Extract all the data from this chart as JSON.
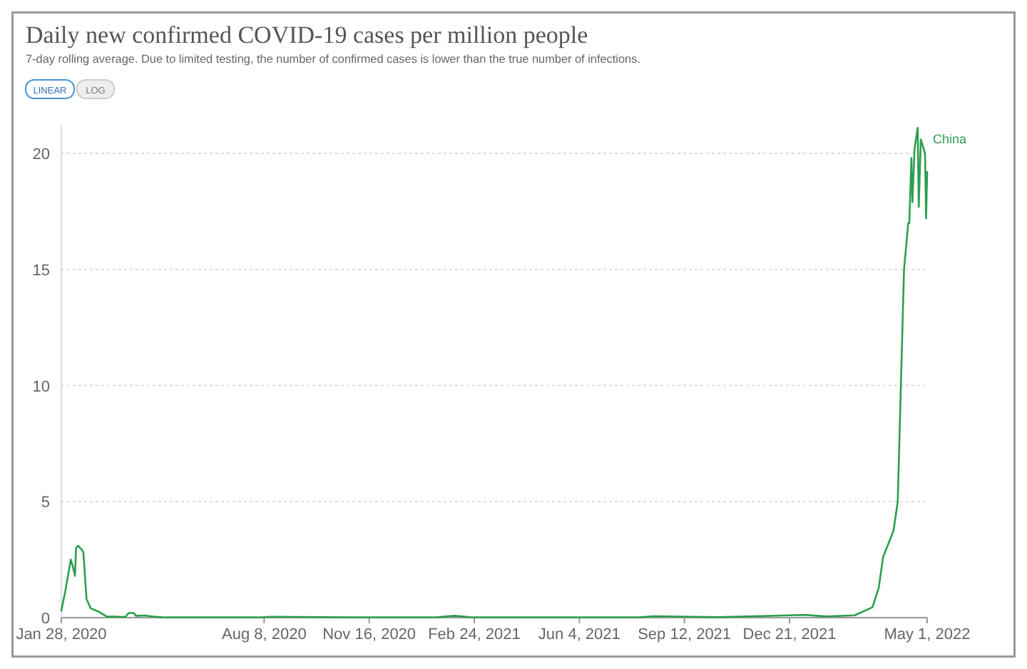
{
  "chart_data": {
    "type": "line",
    "title": "Daily new confirmed COVID-19 cases per million people",
    "subtitle": "7-day rolling average. Due to limited testing, the number of confirmed cases is lower than the true number of infections.",
    "annotations": [
      "LINEAR",
      "LOG"
    ],
    "x": [
      "2020-01-28",
      "2020-02-01",
      "2020-02-06",
      "2020-02-08",
      "2020-02-10",
      "2020-02-11",
      "2020-02-13",
      "2020-02-17",
      "2020-02-18",
      "2020-02-21",
      "2020-02-25",
      "2020-03-04",
      "2020-03-11",
      "2020-03-29",
      "2020-04-01",
      "2020-04-06",
      "2020-04-08",
      "2020-04-17",
      "2020-04-23",
      "2020-05-06",
      "2020-08-01",
      "2020-08-15",
      "2020-11-01",
      "2021-01-20",
      "2021-02-05",
      "2021-02-20",
      "2021-05-01",
      "2021-08-01",
      "2021-08-15",
      "2021-10-15",
      "2021-12-21",
      "2022-01-05",
      "2022-01-25",
      "2022-02-21",
      "2022-03-10",
      "2022-03-16",
      "2022-03-20",
      "2022-03-30",
      "2022-04-03",
      "2022-04-06",
      "2022-04-09",
      "2022-04-13",
      "2022-04-14",
      "2022-04-16",
      "2022-04-17",
      "2022-04-19",
      "2022-04-22",
      "2022-04-23",
      "2022-04-25",
      "2022-04-27",
      "2022-04-29",
      "2022-04-30",
      "2022-05-01"
    ],
    "series": [
      {
        "name": "China",
        "color": "#2d9e4f",
        "values": [
          0.3,
          1.2,
          2.5,
          2.2,
          1.8,
          3.0,
          3.1,
          2.9,
          2.8,
          0.8,
          0.4,
          0.25,
          0.05,
          0.03,
          0.2,
          0.2,
          0.08,
          0.09,
          0.05,
          0.01,
          0.01,
          0.04,
          0.01,
          0.02,
          0.08,
          0.02,
          0.01,
          0.02,
          0.06,
          0.02,
          0.1,
          0.12,
          0.05,
          0.1,
          0.45,
          1.3,
          2.6,
          3.75,
          5.0,
          10.0,
          15.0,
          17.0,
          17.0,
          19.8,
          17.9,
          20.2,
          21.1,
          17.7,
          20.6,
          20.3,
          20.0,
          17.2,
          19.2
        ]
      }
    ],
    "xlim": [
      "2020-01-28",
      "2022-05-01"
    ],
    "xticks": [
      {
        "value": "2020-01-28",
        "label": "Jan 28, 2020"
      },
      {
        "value": "2020-08-08",
        "label": "Aug 8, 2020"
      },
      {
        "value": "2020-11-16",
        "label": "Nov 16, 2020"
      },
      {
        "value": "2021-02-24",
        "label": "Feb 24, 2021"
      },
      {
        "value": "2021-06-04",
        "label": "Jun 4, 2021"
      },
      {
        "value": "2021-09-12",
        "label": "Sep 12, 2021"
      },
      {
        "value": "2021-12-21",
        "label": "Dec 21, 2021"
      },
      {
        "value": "2022-05-01",
        "label": "May 1, 2022"
      }
    ],
    "ylim": [
      0,
      21.2
    ],
    "yticks": [
      0,
      5,
      10,
      15,
      20
    ],
    "grid": "y"
  }
}
